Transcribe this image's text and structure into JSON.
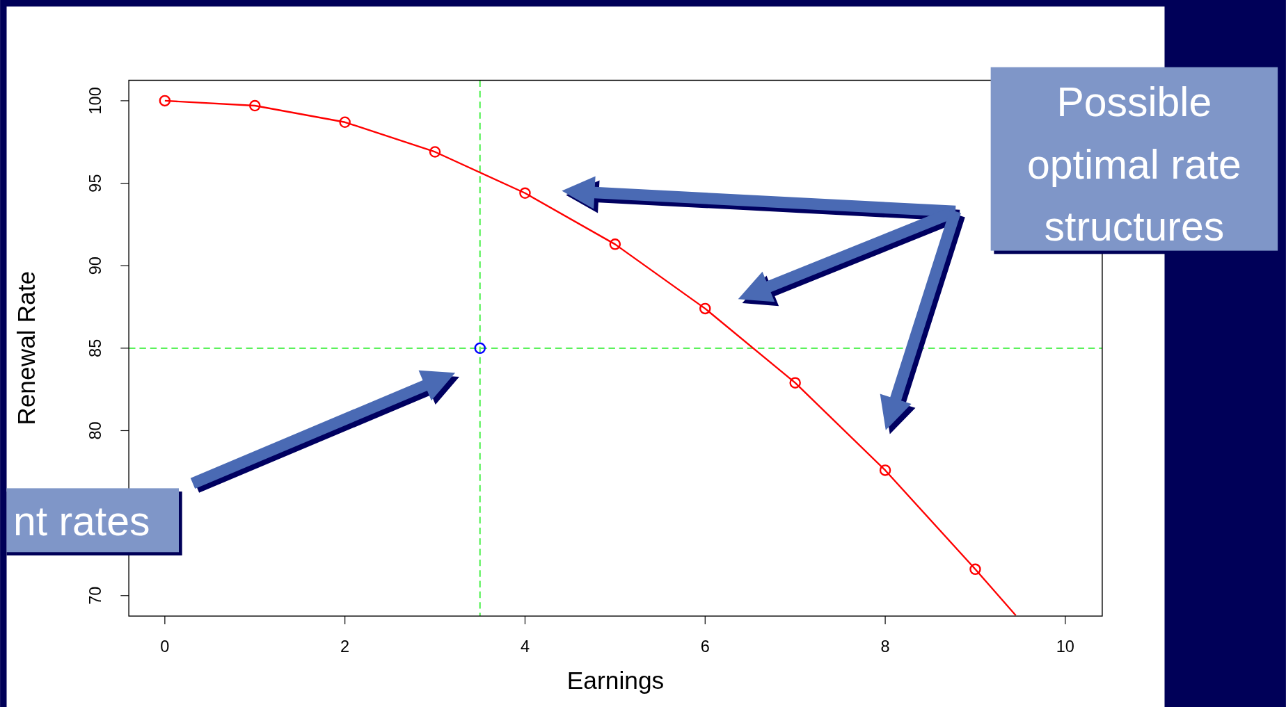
{
  "chart_data": {
    "type": "line",
    "xlabel": "Earnings",
    "ylabel": "Renewal Rate",
    "xlim": [
      -0.4,
      10.41
    ],
    "ylim": [
      68.76,
      101.24
    ],
    "xticks": [
      0,
      2,
      4,
      6,
      8,
      10
    ],
    "yticks": [
      70,
      {
        "value": 75,
        "label": null
      },
      80,
      85,
      90,
      95,
      100
    ],
    "series": [
      {
        "color": "#ff0000",
        "marker": "circle",
        "x": [
          0,
          1,
          2,
          3,
          4,
          5,
          6,
          7,
          8,
          9
        ],
        "values": [
          100,
          99.7,
          98.7,
          96.9,
          94.4,
          91.3,
          87.4,
          82.9,
          77.6,
          71.6
        ]
      },
      {
        "color": "#ff0000",
        "marker": "none",
        "x": [
          9,
          9.45
        ],
        "values": [
          71.6,
          68.8
        ]
      },
      {
        "type": "scatter",
        "color": "#0000ff",
        "marker": "circle",
        "x": [
          3.5
        ],
        "values": [
          85
        ]
      }
    ],
    "ref_lines": [
      {
        "axis": "x",
        "value": 3.5,
        "color": "#33ee33",
        "line_style": "dashed"
      },
      {
        "axis": "y",
        "value": 85,
        "color": "#33ee33",
        "line_style": "dashed"
      }
    ],
    "annotations": [
      "Possible optimal rate structures",
      "nt rates"
    ],
    "grid": false
  }
}
